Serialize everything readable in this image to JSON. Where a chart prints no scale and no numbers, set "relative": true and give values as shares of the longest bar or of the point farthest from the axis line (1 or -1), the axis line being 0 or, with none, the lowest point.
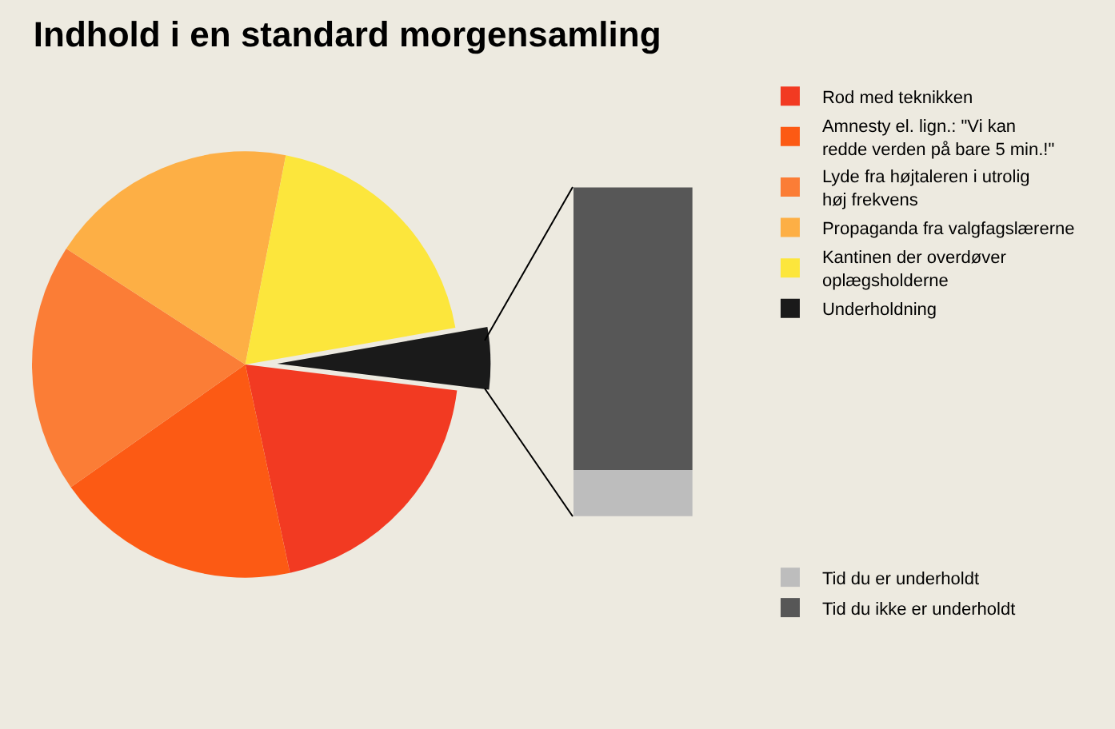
{
  "chart_data": [
    {
      "type": "pie",
      "title": "Indhold i en standard morgensamling",
      "categories": [
        "Rod med teknikken",
        "Amnesty el. lign.: \"Vi kan redde verden på bare 5 min.!\"",
        "Lyde fra højtaleren i utrolig høj frekvens",
        "Propaganda fra valgfagslærerne",
        "Kantinen der overdøver oplægsholderne",
        "Underholdning"
      ],
      "values": [
        19.7,
        18.6,
        18.9,
        18.9,
        19.2,
        4.7
      ],
      "colors": [
        "#f23a22",
        "#fc5a14",
        "#fb7d36",
        "#fdaf45",
        "#fce63c",
        "#1a1a1a"
      ],
      "legend": "right"
    },
    {
      "type": "bar",
      "stacked": true,
      "relative": true,
      "categories": [
        null
      ],
      "legend": "right",
      "series": [
        {
          "name": "Tid du er underholdt",
          "color": "#bdbdbd",
          "values": [
            0.14
          ]
        },
        {
          "name": "Tid du ikke er underholdt",
          "color": "#575757",
          "values": [
            0.86
          ]
        }
      ]
    }
  ]
}
